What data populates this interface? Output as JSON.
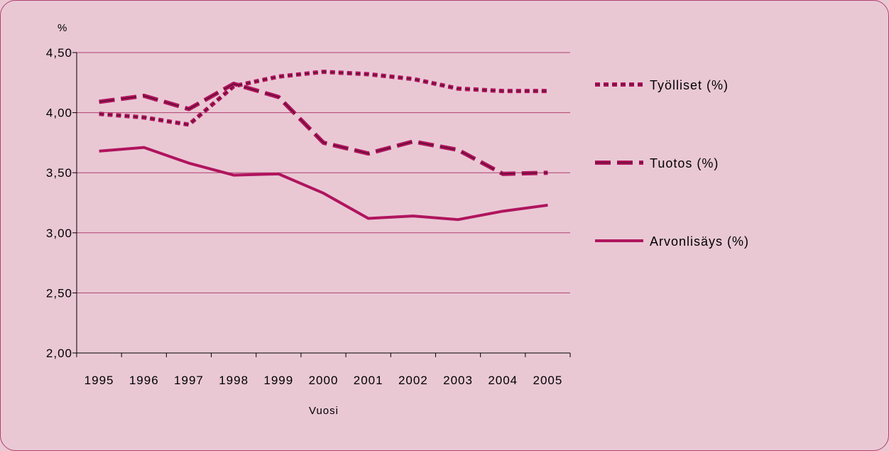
{
  "chart_data": {
    "type": "line",
    "title": "",
    "xlabel": "Vuosi",
    "ylabel": "%",
    "categories": [
      "1995",
      "1996",
      "1997",
      "1998",
      "1999",
      "2000",
      "2001",
      "2002",
      "2003",
      "2004",
      "2005"
    ],
    "ylim": [
      2.0,
      4.5
    ],
    "yticks": [
      2.0,
      2.5,
      3.0,
      3.5,
      4.0,
      4.5
    ],
    "ytick_labels": [
      "2,00",
      "2,50",
      "3,00",
      "3,50",
      "4,00",
      "4,50"
    ],
    "grid": true,
    "legend_position": "right",
    "series": [
      {
        "name": "Työlliset (%)",
        "style": "dotted-double",
        "values": [
          3.99,
          3.96,
          3.9,
          4.22,
          4.3,
          4.34,
          4.32,
          4.28,
          4.2,
          4.18,
          4.18
        ]
      },
      {
        "name": "Tuotos (%)",
        "style": "dashed-double",
        "values": [
          4.09,
          4.14,
          4.03,
          4.24,
          4.13,
          3.75,
          3.66,
          3.76,
          3.69,
          3.49,
          3.5
        ]
      },
      {
        "name": "Arvonlisäys (%)",
        "style": "solid",
        "values": [
          3.68,
          3.71,
          3.58,
          3.48,
          3.49,
          3.33,
          3.12,
          3.14,
          3.11,
          3.18,
          3.23
        ]
      }
    ]
  },
  "colors": {
    "line": "#b0145e",
    "line_inner": "#3a0b1d",
    "grid": "#b0406e",
    "axis": "#000000",
    "background": "#e9c8d4"
  }
}
